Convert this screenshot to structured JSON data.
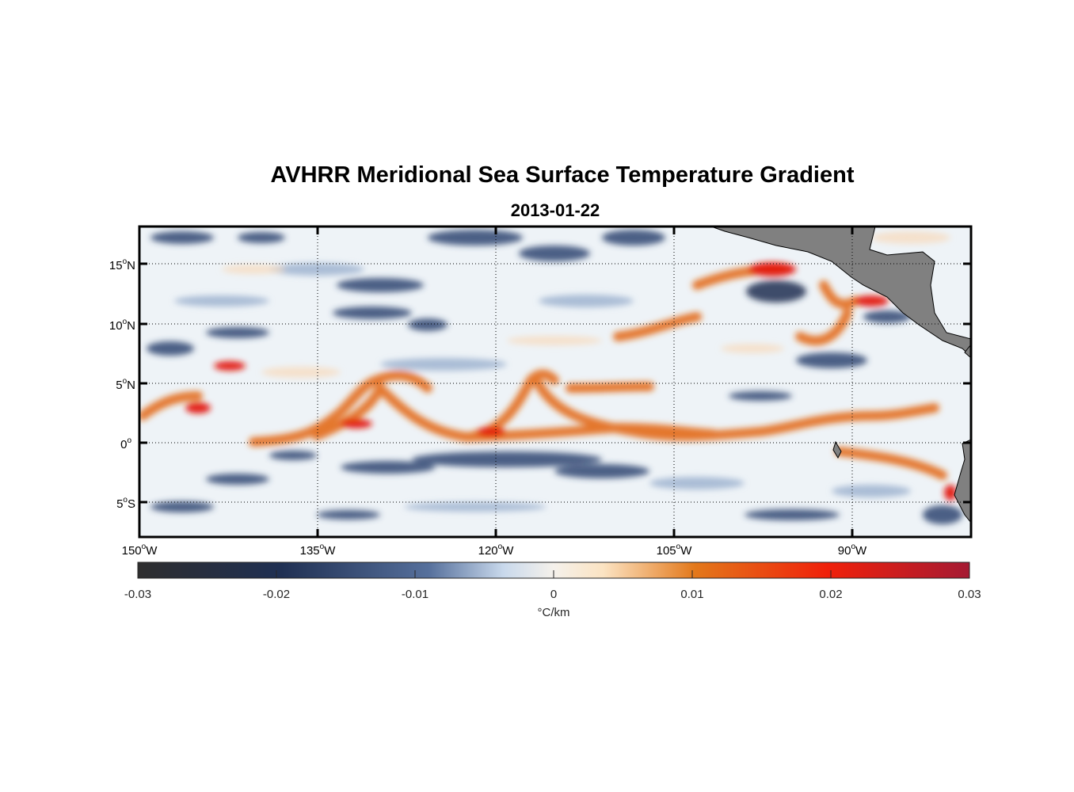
{
  "title": "AVHRR Meridional Sea Surface Temperature Gradient",
  "subtitle": "2013-01-22",
  "map": {
    "lon_range": [
      -150,
      -80
    ],
    "lat_range": [
      -8,
      18
    ],
    "lat_ticks": [
      {
        "value": 15,
        "num": "15",
        "hemi": "N"
      },
      {
        "value": 10,
        "num": "10",
        "hemi": "N"
      },
      {
        "value": 5,
        "num": "5",
        "hemi": "N"
      },
      {
        "value": 0,
        "num": "0",
        "hemi": ""
      },
      {
        "value": -5,
        "num": "5",
        "hemi": "S"
      }
    ],
    "lon_ticks": [
      {
        "value": -150,
        "num": "150",
        "hemi": "W"
      },
      {
        "value": -135,
        "num": "135",
        "hemi": "W"
      },
      {
        "value": -120,
        "num": "120",
        "hemi": "W"
      },
      {
        "value": -105,
        "num": "105",
        "hemi": "W"
      },
      {
        "value": -90,
        "num": "90",
        "hemi": "W"
      }
    ],
    "land_color": "#808080",
    "grid_style": "dotted"
  },
  "colorbar": {
    "range": [
      -0.03,
      0.03
    ],
    "ticks": [
      "-0.03",
      "-0.02",
      "-0.01",
      "0",
      "0.01",
      "0.02",
      "0.03"
    ],
    "label": "°C/km",
    "colors": [
      "#2e2e2e",
      "#1f2f52",
      "#56709c",
      "#dbe8f4",
      "#f5f1eb",
      "#fbe3c2",
      "#e3781a",
      "#f0200a",
      "#a51a33"
    ]
  }
}
